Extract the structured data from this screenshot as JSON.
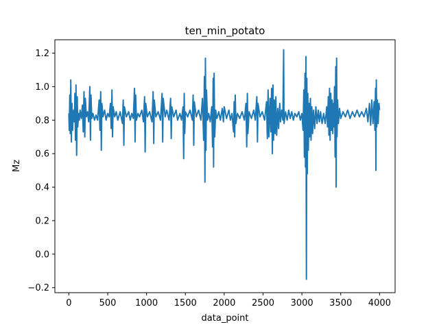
{
  "chart_data": {
    "type": "line",
    "title": "ten_min_potato",
    "xlabel": "data_point",
    "ylabel": "Mz",
    "xlim": [
      -180,
      4200
    ],
    "ylim": [
      -0.23,
      1.28
    ],
    "xticks": [
      0,
      500,
      1000,
      1500,
      2000,
      2500,
      3000,
      3500,
      4000
    ],
    "yticks": [
      -0.2,
      0.0,
      0.2,
      0.4,
      0.6,
      0.8,
      1.0,
      1.2
    ],
    "ytick_labels": [
      "−0.2",
      "0.0",
      "0.2",
      "0.4",
      "0.6",
      "0.8",
      "1.0",
      "1.2"
    ],
    "grid": false,
    "color": "#1f77b4",
    "series": [
      {
        "values": [
          [
            0,
            0.84
          ],
          [
            5,
            0.74
          ],
          [
            12,
            0.95
          ],
          [
            18,
            0.72
          ],
          [
            25,
            1.04
          ],
          [
            32,
            0.67
          ],
          [
            40,
            0.9
          ],
          [
            48,
            0.74
          ],
          [
            55,
            0.82
          ],
          [
            62,
            0.86
          ],
          [
            70,
            0.79
          ],
          [
            78,
            0.96
          ],
          [
            85,
            0.68
          ],
          [
            92,
            1.01
          ],
          [
            100,
            0.59
          ],
          [
            108,
            0.94
          ],
          [
            115,
            0.76
          ],
          [
            125,
            0.84
          ],
          [
            135,
            0.8
          ],
          [
            145,
            0.86
          ],
          [
            160,
            0.81
          ],
          [
            175,
            0.89
          ],
          [
            185,
            0.73
          ],
          [
            195,
            0.97
          ],
          [
            205,
            0.7
          ],
          [
            212,
            0.93
          ],
          [
            225,
            0.82
          ],
          [
            240,
            0.85
          ],
          [
            255,
            0.79
          ],
          [
            270,
            1.0
          ],
          [
            278,
            0.68
          ],
          [
            285,
            0.95
          ],
          [
            295,
            0.81
          ],
          [
            310,
            0.84
          ],
          [
            330,
            0.8
          ],
          [
            350,
            0.83
          ],
          [
            370,
            0.8
          ],
          [
            390,
            0.92
          ],
          [
            400,
            0.74
          ],
          [
            410,
            0.97
          ],
          [
            418,
            0.62
          ],
          [
            425,
            0.9
          ],
          [
            440,
            0.82
          ],
          [
            460,
            0.86
          ],
          [
            480,
            0.8
          ],
          [
            500,
            0.84
          ],
          [
            520,
            0.82
          ],
          [
            535,
            0.9
          ],
          [
            545,
            0.75
          ],
          [
            555,
            0.98
          ],
          [
            562,
            0.7
          ],
          [
            570,
            0.88
          ],
          [
            590,
            0.82
          ],
          [
            610,
            0.85
          ],
          [
            630,
            0.8
          ],
          [
            660,
            0.85
          ],
          [
            690,
            0.78
          ],
          [
            700,
            0.92
          ],
          [
            708,
            0.65
          ],
          [
            715,
            0.88
          ],
          [
            740,
            0.82
          ],
          [
            770,
            0.85
          ],
          [
            790,
            0.8
          ],
          [
            810,
            0.84
          ],
          [
            830,
            0.81
          ],
          [
            845,
            0.99
          ],
          [
            853,
            0.67
          ],
          [
            860,
            0.95
          ],
          [
            870,
            0.8
          ],
          [
            890,
            0.84
          ],
          [
            910,
            0.82
          ],
          [
            940,
            0.86
          ],
          [
            960,
            0.79
          ],
          [
            975,
            0.94
          ],
          [
            982,
            0.61
          ],
          [
            990,
            0.9
          ],
          [
            1010,
            0.82
          ],
          [
            1040,
            0.85
          ],
          [
            1070,
            0.79
          ],
          [
            1085,
            0.97
          ],
          [
            1093,
            0.66
          ],
          [
            1100,
            0.92
          ],
          [
            1120,
            0.82
          ],
          [
            1150,
            0.85
          ],
          [
            1180,
            0.8
          ],
          [
            1200,
            0.96
          ],
          [
            1208,
            0.67
          ],
          [
            1215,
            0.93
          ],
          [
            1240,
            0.82
          ],
          [
            1260,
            0.86
          ],
          [
            1290,
            0.8
          ],
          [
            1310,
            0.93
          ],
          [
            1318,
            0.69
          ],
          [
            1325,
            0.88
          ],
          [
            1350,
            0.82
          ],
          [
            1380,
            0.86
          ],
          [
            1400,
            0.8
          ],
          [
            1430,
            0.84
          ],
          [
            1450,
            0.8
          ],
          [
            1470,
            0.88
          ],
          [
            1478,
            0.57
          ],
          [
            1485,
            0.96
          ],
          [
            1492,
            0.72
          ],
          [
            1500,
            0.85
          ],
          [
            1530,
            0.82
          ],
          [
            1560,
            0.86
          ],
          [
            1590,
            0.8
          ],
          [
            1600,
            0.95
          ],
          [
            1608,
            0.65
          ],
          [
            1615,
            0.91
          ],
          [
            1640,
            0.82
          ],
          [
            1670,
            0.86
          ],
          [
            1700,
            0.8
          ],
          [
            1720,
            0.93
          ],
          [
            1735,
            0.68
          ],
          [
            1745,
            1.06
          ],
          [
            1752,
            0.43
          ],
          [
            1758,
            1.17
          ],
          [
            1765,
            0.62
          ],
          [
            1772,
            0.98
          ],
          [
            1785,
            0.8
          ],
          [
            1800,
            0.84
          ],
          [
            1820,
            0.79
          ],
          [
            1840,
            0.88
          ],
          [
            1850,
            0.64
          ],
          [
            1858,
            1.05
          ],
          [
            1863,
            0.52
          ],
          [
            1870,
            1.08
          ],
          [
            1878,
            0.7
          ],
          [
            1890,
            0.86
          ],
          [
            1905,
            0.81
          ],
          [
            1930,
            0.85
          ],
          [
            1950,
            0.8
          ],
          [
            1975,
            0.87
          ],
          [
            1990,
            0.79
          ],
          [
            2000,
            0.88
          ],
          [
            2030,
            0.81
          ],
          [
            2060,
            0.86
          ],
          [
            2080,
            0.8
          ],
          [
            2100,
            0.84
          ],
          [
            2120,
            0.73
          ],
          [
            2128,
            0.91
          ],
          [
            2135,
            0.7
          ],
          [
            2142,
            0.95
          ],
          [
            2150,
            0.78
          ],
          [
            2170,
            0.84
          ],
          [
            2200,
            0.81
          ],
          [
            2230,
            0.85
          ],
          [
            2260,
            0.8
          ],
          [
            2280,
            0.9
          ],
          [
            2290,
            0.64
          ],
          [
            2298,
            0.96
          ],
          [
            2305,
            0.72
          ],
          [
            2320,
            0.85
          ],
          [
            2350,
            0.81
          ],
          [
            2380,
            0.86
          ],
          [
            2400,
            0.8
          ],
          [
            2420,
            0.94
          ],
          [
            2428,
            0.67
          ],
          [
            2435,
            0.9
          ],
          [
            2460,
            0.82
          ],
          [
            2490,
            0.85
          ],
          [
            2520,
            0.8
          ],
          [
            2545,
            0.91
          ],
          [
            2555,
            0.69
          ],
          [
            2565,
            0.98
          ],
          [
            2575,
            0.7
          ],
          [
            2590,
            0.93
          ],
          [
            2600,
            0.73
          ],
          [
            2610,
            0.99
          ],
          [
            2620,
            0.6
          ],
          [
            2628,
            1.01
          ],
          [
            2635,
            0.68
          ],
          [
            2645,
            0.92
          ],
          [
            2655,
            0.72
          ],
          [
            2665,
            0.94
          ],
          [
            2675,
            0.71
          ],
          [
            2690,
            0.87
          ],
          [
            2700,
            0.75
          ],
          [
            2715,
            0.9
          ],
          [
            2725,
            0.79
          ],
          [
            2740,
            0.86
          ],
          [
            2755,
            0.8
          ],
          [
            2765,
            1.22
          ],
          [
            2770,
            0.78
          ],
          [
            2790,
            0.85
          ],
          [
            2810,
            0.8
          ],
          [
            2830,
            0.86
          ],
          [
            2850,
            0.81
          ],
          [
            2870,
            0.85
          ],
          [
            2890,
            0.8
          ],
          [
            2910,
            0.84
          ],
          [
            2935,
            0.82
          ],
          [
            2960,
            0.85
          ],
          [
            2980,
            0.8
          ],
          [
            3000,
            0.84
          ],
          [
            3015,
            0.74
          ],
          [
            3025,
            0.98
          ],
          [
            3032,
            0.58
          ],
          [
            3040,
            1.08
          ],
          [
            3046,
            0.52
          ],
          [
            3052,
            1.18
          ],
          [
            3058,
            -0.15
          ],
          [
            3064,
            1.05
          ],
          [
            3070,
            0.48
          ],
          [
            3076,
            0.96
          ],
          [
            3083,
            0.62
          ],
          [
            3092,
            0.9
          ],
          [
            3100,
            0.7
          ],
          [
            3110,
            0.93
          ],
          [
            3118,
            0.68
          ],
          [
            3128,
            0.88
          ],
          [
            3138,
            0.72
          ],
          [
            3150,
            0.86
          ],
          [
            3165,
            0.75
          ],
          [
            3180,
            0.88
          ],
          [
            3195,
            0.78
          ],
          [
            3210,
            0.86
          ],
          [
            3225,
            0.79
          ],
          [
            3240,
            0.85
          ],
          [
            3260,
            0.78
          ],
          [
            3280,
            0.84
          ],
          [
            3300,
            0.78
          ],
          [
            3320,
            0.88
          ],
          [
            3330,
            0.76
          ],
          [
            3340,
            0.94
          ],
          [
            3348,
            0.71
          ],
          [
            3356,
            0.99
          ],
          [
            3363,
            0.68
          ],
          [
            3372,
            0.96
          ],
          [
            3380,
            0.74
          ],
          [
            3390,
            0.92
          ],
          [
            3398,
            0.72
          ],
          [
            3405,
            0.9
          ],
          [
            3412,
            0.76
          ],
          [
            3420,
            1.0
          ],
          [
            3428,
            0.58
          ],
          [
            3436,
            1.12
          ],
          [
            3441,
            0.4
          ],
          [
            3447,
            1.17
          ],
          [
            3452,
            0.7
          ],
          [
            3460,
            0.92
          ],
          [
            3470,
            0.78
          ],
          [
            3485,
            0.87
          ],
          [
            3500,
            0.81
          ],
          [
            3530,
            0.85
          ],
          [
            3560,
            0.82
          ],
          [
            3590,
            0.86
          ],
          [
            3620,
            0.81
          ],
          [
            3650,
            0.85
          ],
          [
            3680,
            0.82
          ],
          [
            3710,
            0.86
          ],
          [
            3740,
            0.82
          ],
          [
            3770,
            0.85
          ],
          [
            3800,
            0.82
          ],
          [
            3830,
            0.87
          ],
          [
            3850,
            0.79
          ],
          [
            3870,
            0.9
          ],
          [
            3885,
            0.77
          ],
          [
            3900,
            0.92
          ],
          [
            3915,
            0.78
          ],
          [
            3930,
            0.91
          ],
          [
            3940,
            0.74
          ],
          [
            3948,
            0.99
          ],
          [
            3953,
            0.5
          ],
          [
            3958,
            1.04
          ],
          [
            3964,
            0.76
          ],
          [
            3972,
            0.92
          ],
          [
            3982,
            0.78
          ],
          [
            3992,
            0.9
          ],
          [
            4000,
            0.86
          ]
        ]
      }
    ]
  }
}
